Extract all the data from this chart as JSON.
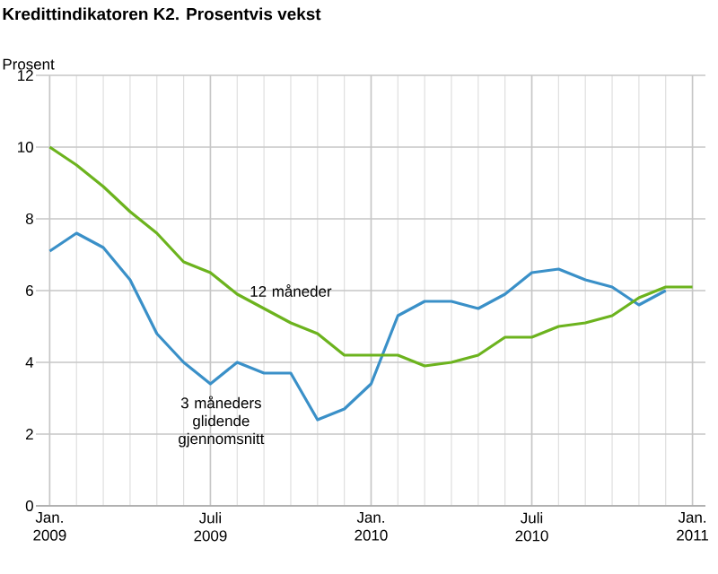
{
  "chart_data": {
    "type": "line",
    "title": "Kredittindikatoren K2. Prosentvis vekst",
    "ylabel": "Prosent",
    "x": [
      "2009-01",
      "2009-02",
      "2009-03",
      "2009-04",
      "2009-05",
      "2009-06",
      "2009-07",
      "2009-08",
      "2009-09",
      "2009-10",
      "2009-11",
      "2009-12",
      "2010-01",
      "2010-02",
      "2010-03",
      "2010-04",
      "2010-05",
      "2010-06",
      "2010-07",
      "2010-08",
      "2010-09",
      "2010-10",
      "2010-11",
      "2010-12",
      "2011-01"
    ],
    "series": [
      {
        "name": "3 måneders glidende gjennomsnitt",
        "color": "#3a90c8",
        "values": [
          7.1,
          7.6,
          7.2,
          6.3,
          4.8,
          4.0,
          3.4,
          4.0,
          3.7,
          3.7,
          2.4,
          2.7,
          3.4,
          5.3,
          5.7,
          5.7,
          5.5,
          5.9,
          6.5,
          6.6,
          6.3,
          6.1,
          5.6,
          6.0,
          null
        ]
      },
      {
        "name": "12 måneder",
        "color": "#6cb31e",
        "values": [
          10.0,
          9.5,
          8.9,
          8.2,
          7.6,
          6.8,
          6.5,
          5.9,
          5.5,
          5.1,
          4.8,
          4.2,
          4.2,
          4.2,
          3.9,
          4.0,
          4.2,
          4.7,
          4.7,
          5.0,
          5.1,
          5.3,
          5.8,
          6.1,
          6.1
        ]
      }
    ],
    "xlim": [
      "2008-12-16",
      "2011-01-16"
    ],
    "xticks": [
      {
        "value": "2009-01",
        "label": "Jan. 2009"
      },
      {
        "value": "2009-07",
        "label": "Juli 2009"
      },
      {
        "value": "2010-01",
        "label": "Jan. 2010"
      },
      {
        "value": "2010-07",
        "label": "Juli 2010"
      },
      {
        "value": "2011-01",
        "label": "Jan. 2011"
      }
    ],
    "ylim": [
      0,
      12
    ],
    "yticks": [
      0,
      2,
      4,
      6,
      8,
      10,
      12
    ],
    "grid": true,
    "legend": false,
    "marker": "none",
    "line_style": "solid"
  }
}
